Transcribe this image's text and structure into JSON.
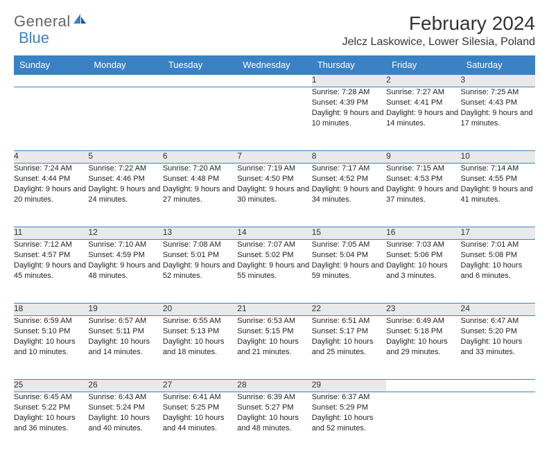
{
  "logo": {
    "part1": "General",
    "part2": "Blue"
  },
  "title": "February 2024",
  "location": "Jelcz Laskowice, Lower Silesia, Poland",
  "colors": {
    "header_bg": "#3b82c4",
    "header_text": "#ffffff",
    "daynum_bg": "#e9e9e9",
    "border": "#3b82c4",
    "text": "#222222",
    "logo_gray": "#666666",
    "logo_blue": "#3b82c4",
    "background": "#ffffff"
  },
  "typography": {
    "title_fontsize": 28,
    "location_fontsize": 16,
    "header_fontsize": 13,
    "daynum_fontsize": 12,
    "detail_fontsize": 11
  },
  "weekdays": [
    "Sunday",
    "Monday",
    "Tuesday",
    "Wednesday",
    "Thursday",
    "Friday",
    "Saturday"
  ],
  "weeks": [
    [
      null,
      null,
      null,
      null,
      {
        "n": "1",
        "sunrise": "7:28 AM",
        "sunset": "4:39 PM",
        "daylight": "9 hours and 10 minutes."
      },
      {
        "n": "2",
        "sunrise": "7:27 AM",
        "sunset": "4:41 PM",
        "daylight": "9 hours and 14 minutes."
      },
      {
        "n": "3",
        "sunrise": "7:25 AM",
        "sunset": "4:43 PM",
        "daylight": "9 hours and 17 minutes."
      }
    ],
    [
      {
        "n": "4",
        "sunrise": "7:24 AM",
        "sunset": "4:44 PM",
        "daylight": "9 hours and 20 minutes."
      },
      {
        "n": "5",
        "sunrise": "7:22 AM",
        "sunset": "4:46 PM",
        "daylight": "9 hours and 24 minutes."
      },
      {
        "n": "6",
        "sunrise": "7:20 AM",
        "sunset": "4:48 PM",
        "daylight": "9 hours and 27 minutes."
      },
      {
        "n": "7",
        "sunrise": "7:19 AM",
        "sunset": "4:50 PM",
        "daylight": "9 hours and 30 minutes."
      },
      {
        "n": "8",
        "sunrise": "7:17 AM",
        "sunset": "4:52 PM",
        "daylight": "9 hours and 34 minutes."
      },
      {
        "n": "9",
        "sunrise": "7:15 AM",
        "sunset": "4:53 PM",
        "daylight": "9 hours and 37 minutes."
      },
      {
        "n": "10",
        "sunrise": "7:14 AM",
        "sunset": "4:55 PM",
        "daylight": "9 hours and 41 minutes."
      }
    ],
    [
      {
        "n": "11",
        "sunrise": "7:12 AM",
        "sunset": "4:57 PM",
        "daylight": "9 hours and 45 minutes."
      },
      {
        "n": "12",
        "sunrise": "7:10 AM",
        "sunset": "4:59 PM",
        "daylight": "9 hours and 48 minutes."
      },
      {
        "n": "13",
        "sunrise": "7:08 AM",
        "sunset": "5:01 PM",
        "daylight": "9 hours and 52 minutes."
      },
      {
        "n": "14",
        "sunrise": "7:07 AM",
        "sunset": "5:02 PM",
        "daylight": "9 hours and 55 minutes."
      },
      {
        "n": "15",
        "sunrise": "7:05 AM",
        "sunset": "5:04 PM",
        "daylight": "9 hours and 59 minutes."
      },
      {
        "n": "16",
        "sunrise": "7:03 AM",
        "sunset": "5:06 PM",
        "daylight": "10 hours and 3 minutes."
      },
      {
        "n": "17",
        "sunrise": "7:01 AM",
        "sunset": "5:08 PM",
        "daylight": "10 hours and 6 minutes."
      }
    ],
    [
      {
        "n": "18",
        "sunrise": "6:59 AM",
        "sunset": "5:10 PM",
        "daylight": "10 hours and 10 minutes."
      },
      {
        "n": "19",
        "sunrise": "6:57 AM",
        "sunset": "5:11 PM",
        "daylight": "10 hours and 14 minutes."
      },
      {
        "n": "20",
        "sunrise": "6:55 AM",
        "sunset": "5:13 PM",
        "daylight": "10 hours and 18 minutes."
      },
      {
        "n": "21",
        "sunrise": "6:53 AM",
        "sunset": "5:15 PM",
        "daylight": "10 hours and 21 minutes."
      },
      {
        "n": "22",
        "sunrise": "6:51 AM",
        "sunset": "5:17 PM",
        "daylight": "10 hours and 25 minutes."
      },
      {
        "n": "23",
        "sunrise": "6:49 AM",
        "sunset": "5:18 PM",
        "daylight": "10 hours and 29 minutes."
      },
      {
        "n": "24",
        "sunrise": "6:47 AM",
        "sunset": "5:20 PM",
        "daylight": "10 hours and 33 minutes."
      }
    ],
    [
      {
        "n": "25",
        "sunrise": "6:45 AM",
        "sunset": "5:22 PM",
        "daylight": "10 hours and 36 minutes."
      },
      {
        "n": "26",
        "sunrise": "6:43 AM",
        "sunset": "5:24 PM",
        "daylight": "10 hours and 40 minutes."
      },
      {
        "n": "27",
        "sunrise": "6:41 AM",
        "sunset": "5:25 PM",
        "daylight": "10 hours and 44 minutes."
      },
      {
        "n": "28",
        "sunrise": "6:39 AM",
        "sunset": "5:27 PM",
        "daylight": "10 hours and 48 minutes."
      },
      {
        "n": "29",
        "sunrise": "6:37 AM",
        "sunset": "5:29 PM",
        "daylight": "10 hours and 52 minutes."
      },
      null,
      null
    ]
  ],
  "labels": {
    "sunrise": "Sunrise: ",
    "sunset": "Sunset: ",
    "daylight": "Daylight: "
  }
}
